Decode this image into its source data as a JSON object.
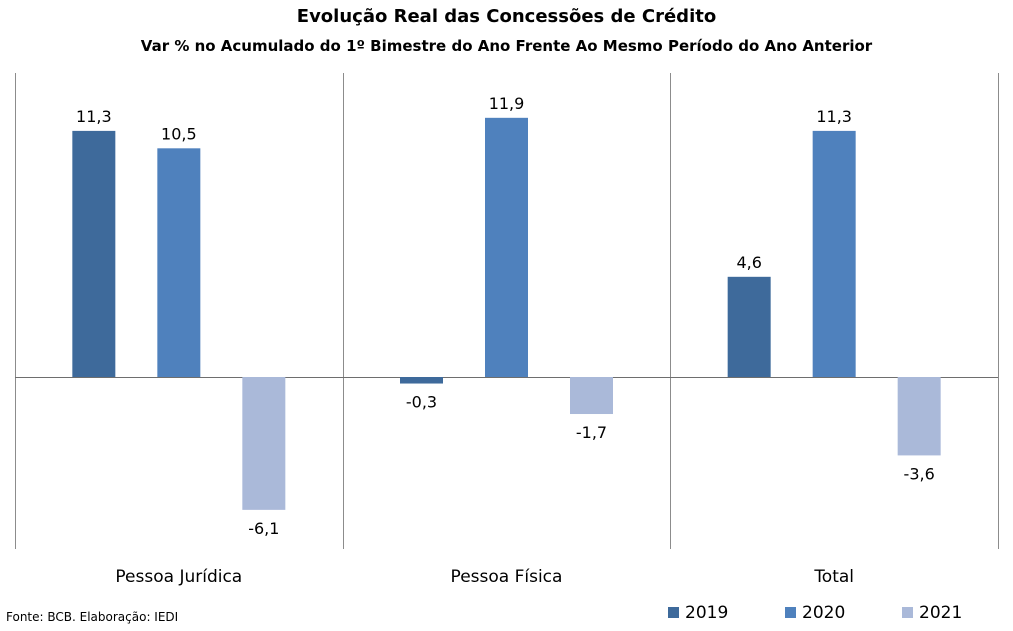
{
  "chart_data": {
    "type": "bar",
    "title": "Evolução Real das Concessões de Crédito",
    "subtitle": "Var % no Acumulado do 1º Bimestre do Ano Frente Ao Mesmo Período do Ano Anterior",
    "categories": [
      "Pessoa Jurídica",
      "Pessoa Física",
      "Total"
    ],
    "series": [
      {
        "name": "2019",
        "values": [
          11.3,
          -0.3,
          4.6
        ],
        "labels": [
          "11,3",
          "-0,3",
          "4,6"
        ],
        "color": "#3E6A9B"
      },
      {
        "name": "2020",
        "values": [
          10.5,
          11.9,
          11.3
        ],
        "labels": [
          "10,5",
          "11,9",
          "11,3"
        ],
        "color": "#4F81BD"
      },
      {
        "name": "2021",
        "values": [
          -6.1,
          -1.7,
          -3.6
        ],
        "labels": [
          "-6,1",
          "-1,7",
          "-3,6"
        ],
        "color": "#AAB9D9"
      }
    ],
    "ylim": [
      -8,
      14
    ],
    "grid": false,
    "legend_position": "bottom-right"
  },
  "source": "Fonte:  BCB. Elaboração: IEDI"
}
